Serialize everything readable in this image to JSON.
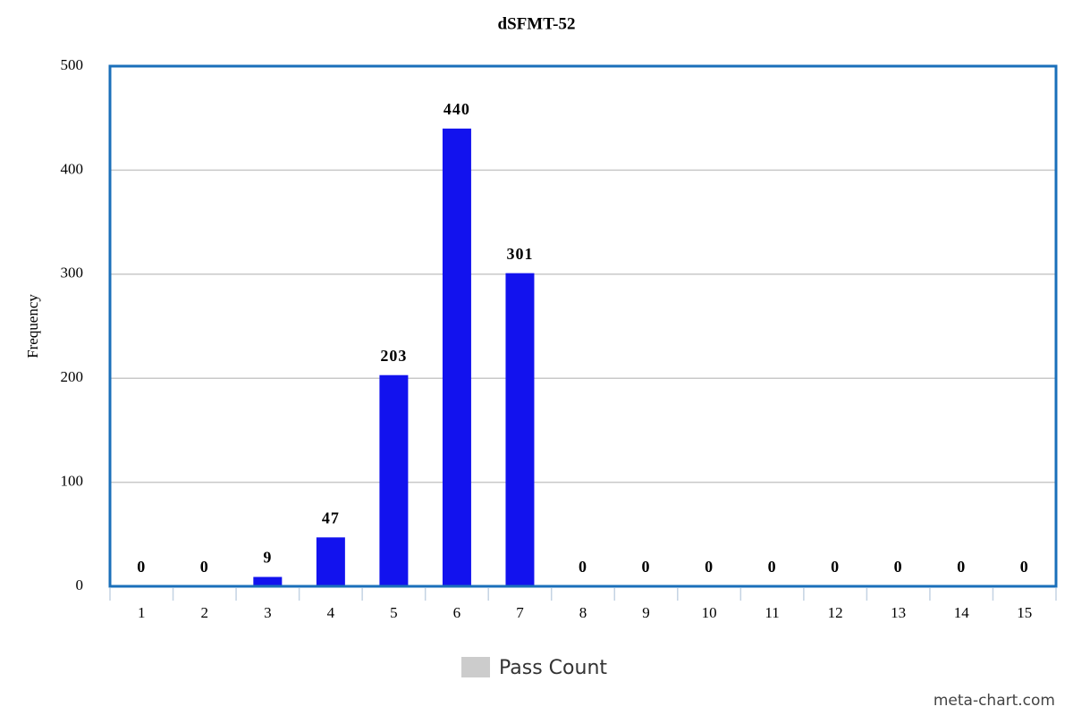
{
  "chart_data": {
    "type": "bar",
    "title": "dSFMT-52",
    "y_label": "Frequency",
    "categories": [
      "1",
      "2",
      "3",
      "4",
      "5",
      "6",
      "7",
      "8",
      "9",
      "10",
      "11",
      "12",
      "13",
      "14",
      "15"
    ],
    "series": [
      {
        "name": "Pass Count",
        "color": "#1212ee",
        "values": [
          0,
          0,
          9,
          47,
          203,
          440,
          301,
          0,
          0,
          0,
          0,
          0,
          0,
          0,
          0
        ]
      }
    ],
    "legend_color": "#cccccc",
    "legend_position": "bottom",
    "ylim": [
      0,
      500
    ],
    "yticks": [
      0,
      100,
      200,
      300,
      400,
      500
    ],
    "grid": true,
    "watermark": "meta-chart.com"
  }
}
